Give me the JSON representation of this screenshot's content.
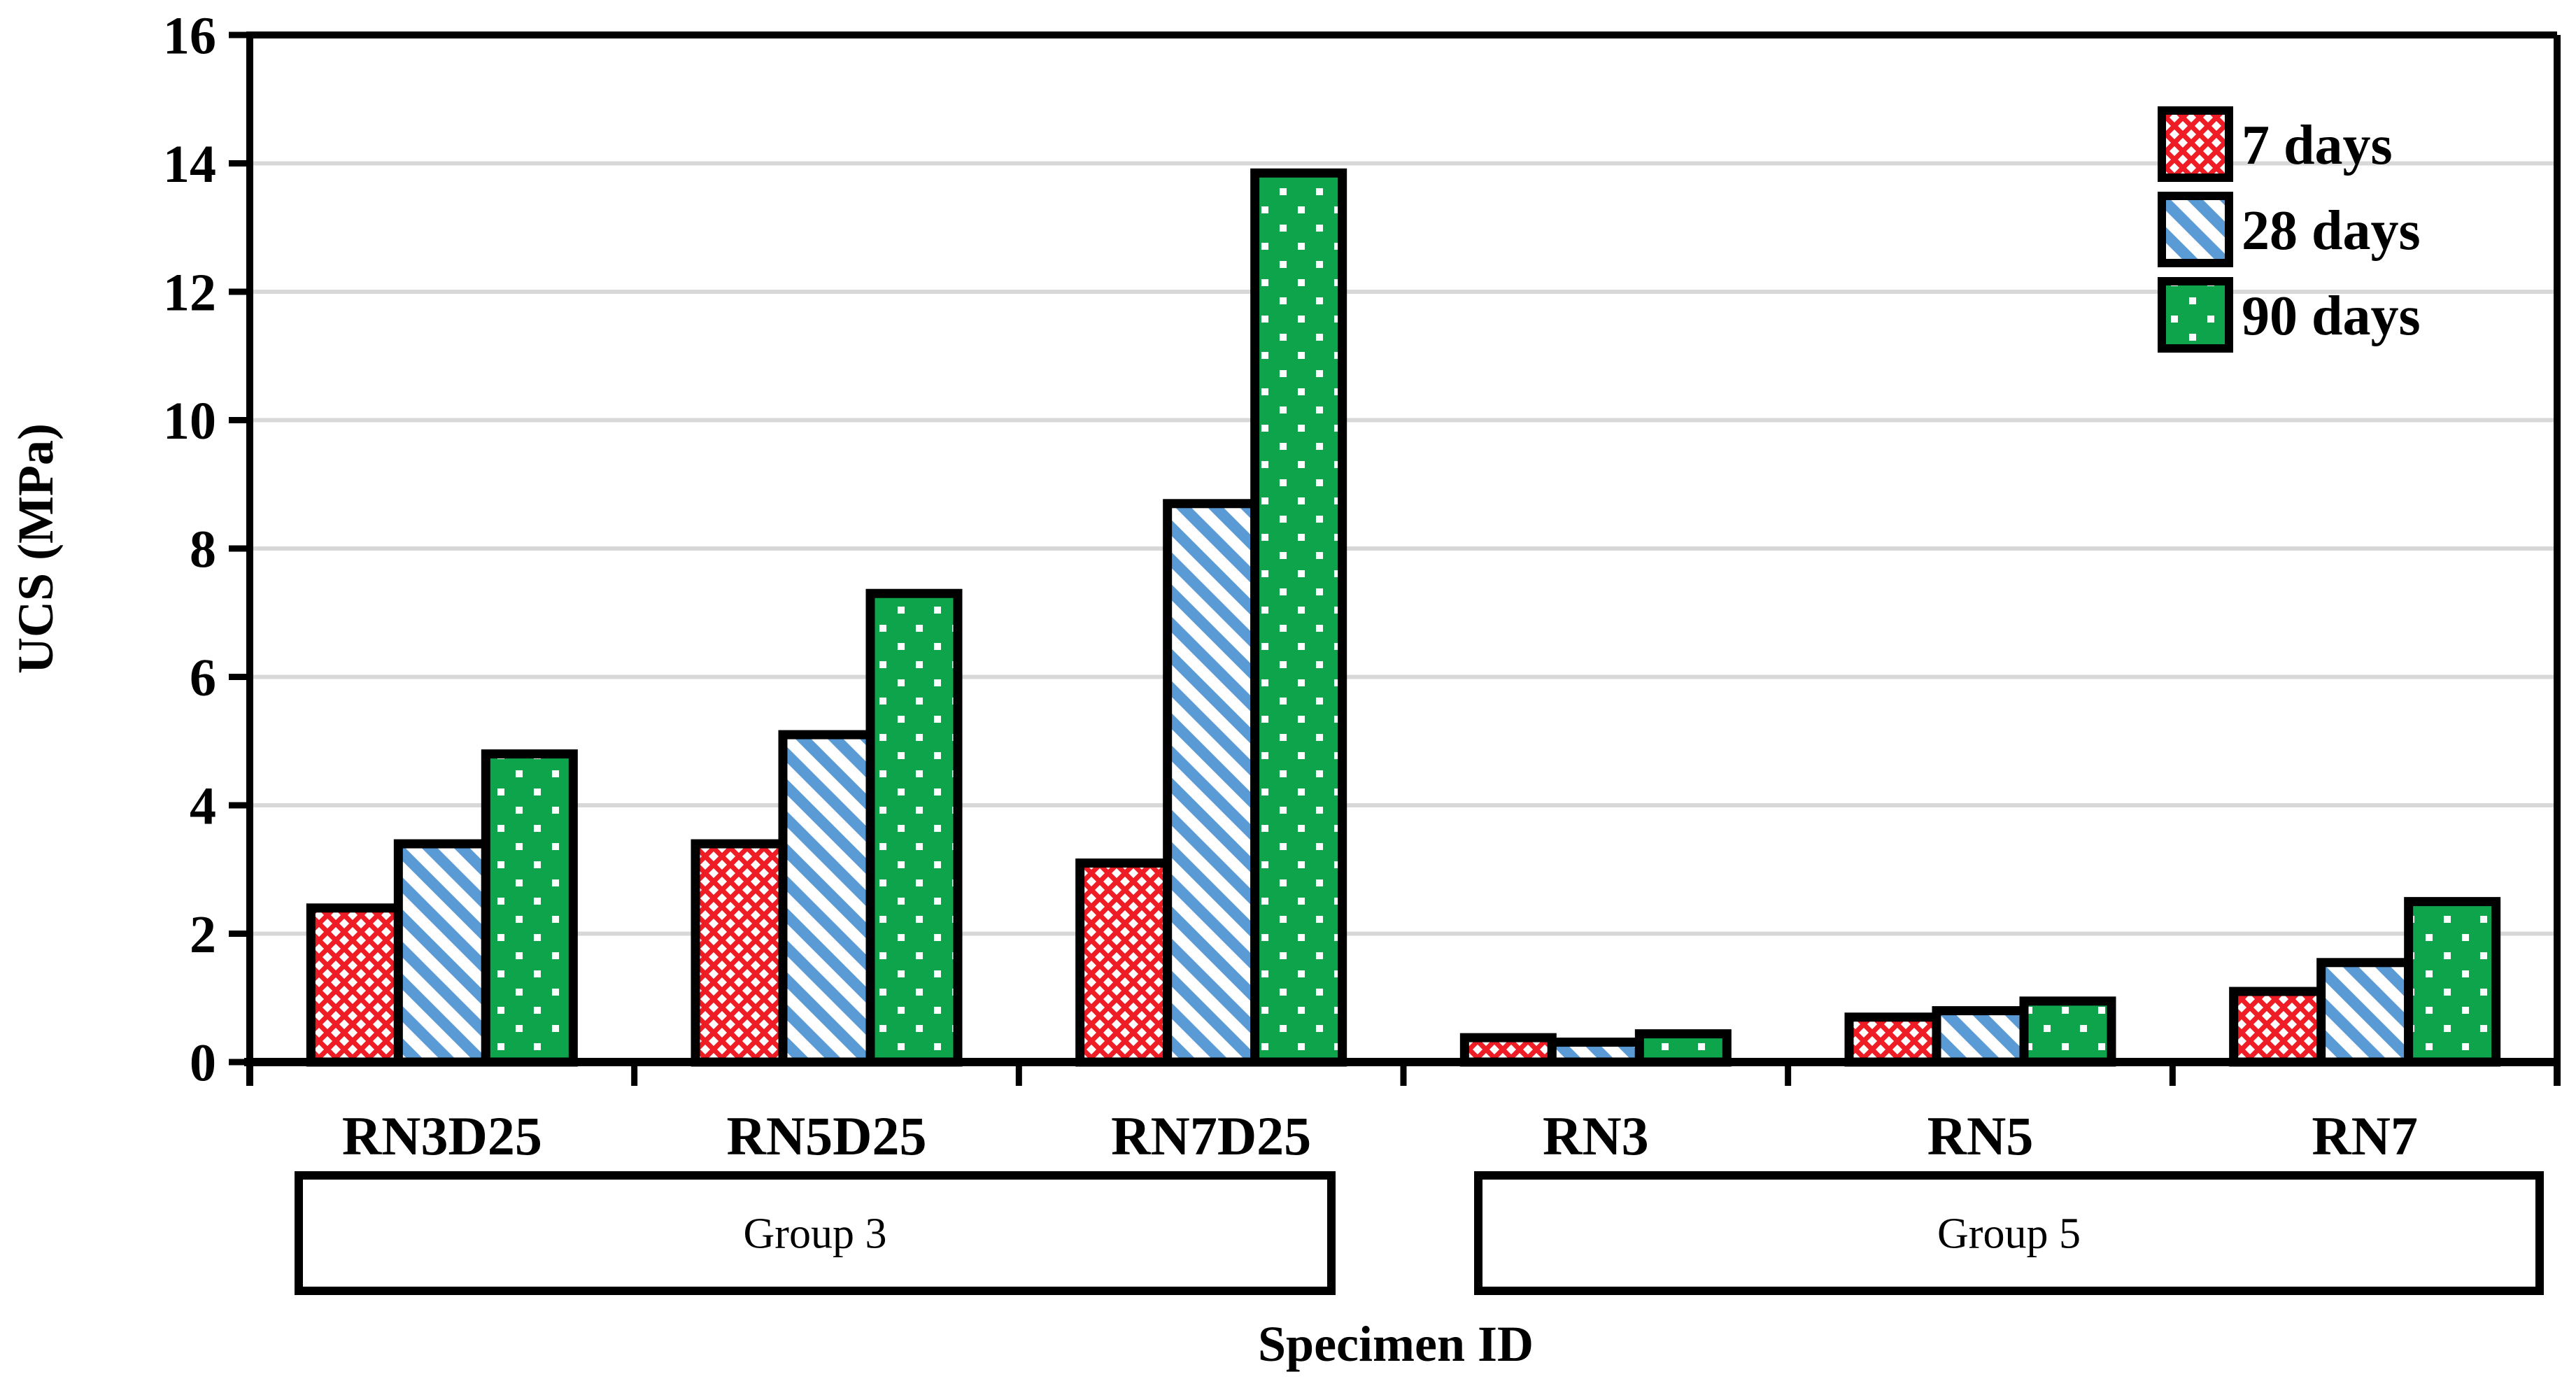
{
  "chart_data": {
    "type": "bar",
    "title": "",
    "xlabel": "Specimen ID",
    "ylabel": "UCS (MPa)",
    "ylim": [
      0,
      16
    ],
    "yticks": [
      0,
      2,
      4,
      6,
      8,
      10,
      12,
      14,
      16
    ],
    "grid": "horizontal-light-gray",
    "legend_position": "top-right-inside",
    "categories": [
      "RN3D25",
      "RN5D25",
      "RN7D25",
      "RN3",
      "RN5",
      "RN7"
    ],
    "group_boxes": [
      {
        "label": "Group 3",
        "categories": [
          "RN3D25",
          "RN5D25",
          "RN7D25"
        ]
      },
      {
        "label": "Group 5",
        "categories": [
          "RN3",
          "RN5",
          "RN7"
        ]
      }
    ],
    "series": [
      {
        "name": "7 days",
        "pattern": "red-crosshatch",
        "color": "#EE1C25",
        "values": [
          2.4,
          3.4,
          3.1,
          0.38,
          0.7,
          1.1
        ]
      },
      {
        "name": "28 days",
        "pattern": "blue-diagonal-stripes",
        "color": "#5B9BD5",
        "values": [
          3.4,
          5.1,
          8.7,
          0.31,
          0.8,
          1.55
        ]
      },
      {
        "name": "90 days",
        "pattern": "green-white-dots",
        "color": "#0EA44C",
        "values": [
          4.8,
          7.3,
          13.85,
          0.44,
          0.95,
          2.5
        ]
      }
    ]
  },
  "colors": {
    "axis": "#000000",
    "gridline": "#D8D8D8",
    "background": "#FFFFFF",
    "bar_border": "#000000",
    "text": "#000000",
    "pattern_background": "#FFFFFF",
    "dot": "#FFFFFF"
  }
}
